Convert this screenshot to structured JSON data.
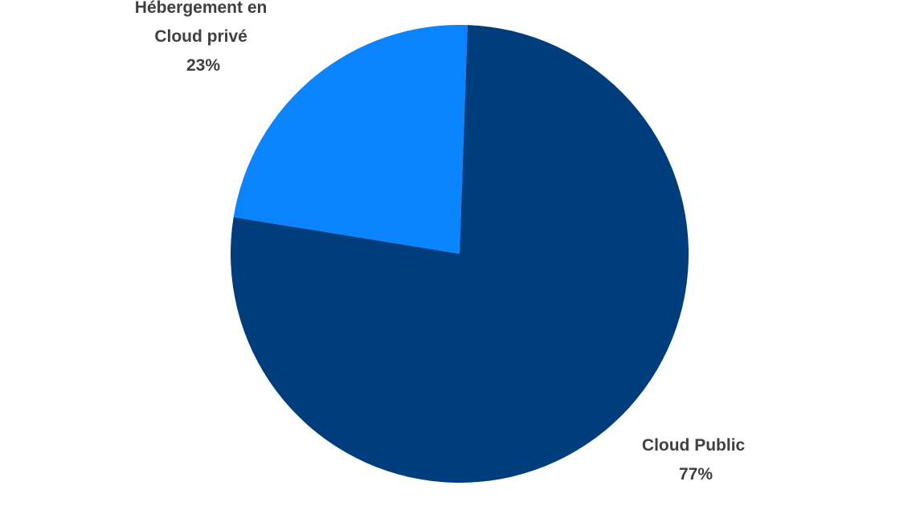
{
  "chart_data": {
    "type": "pie",
    "categories": [
      "Hébergement en Cloud privé",
      "Cloud Public"
    ],
    "values": [
      23,
      77
    ],
    "unit": "%",
    "colors": [
      "#0A84FF",
      "#003D7C"
    ],
    "labels": [
      {
        "lines": [
          "Hébergement en",
          "Cloud privé"
        ],
        "value": "23%"
      },
      {
        "lines": [
          "Cloud Public"
        ],
        "value": "77%"
      }
    ],
    "start_angle_deg": 2,
    "direction": "counterclockwise"
  }
}
